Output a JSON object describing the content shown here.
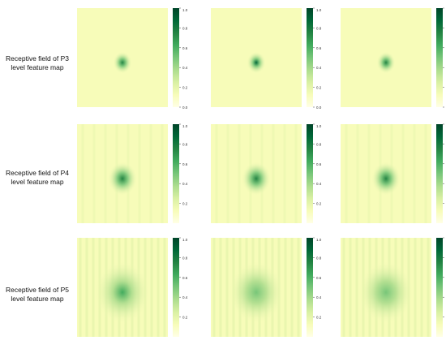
{
  "colors": {
    "colormap": [
      "#ffffe5",
      "#f7fcb9",
      "#d9f0a3",
      "#addd8e",
      "#78c679",
      "#41ab5d",
      "#238443",
      "#006837",
      "#004529"
    ]
  },
  "rows": [
    {
      "label_line1": "Receptive field of P3",
      "label_line2": "level feature map",
      "tick_labels": [
        "1.0",
        "0.8",
        "0.6",
        "0.4",
        "0.2",
        "0.0"
      ],
      "maps": [
        {
          "peak_intensity": 0.75,
          "spread": "small"
        },
        {
          "peak_intensity": 0.85,
          "spread": "small"
        },
        {
          "peak_intensity": 0.8,
          "spread": "small"
        }
      ]
    },
    {
      "label_line1": "Receptive field of P4",
      "label_line2": "level feature map",
      "tick_labels": [
        "1.0",
        "0.8",
        "0.6",
        "0.4",
        "0.2"
      ],
      "maps": [
        {
          "peak_intensity": 0.75,
          "spread": "medium"
        },
        {
          "peak_intensity": 0.7,
          "spread": "medium"
        },
        {
          "peak_intensity": 0.7,
          "spread": "medium"
        }
      ]
    },
    {
      "label_line1": "Receptive field of P5",
      "label_line2": "level feature map",
      "tick_labels": [
        "1.0",
        "0.8",
        "0.6",
        "0.4",
        "0.2"
      ],
      "maps": [
        {
          "peak_intensity": 0.6,
          "spread": "large"
        },
        {
          "peak_intensity": 0.55,
          "spread": "large"
        },
        {
          "peak_intensity": 0.5,
          "spread": "large"
        }
      ]
    }
  ]
}
